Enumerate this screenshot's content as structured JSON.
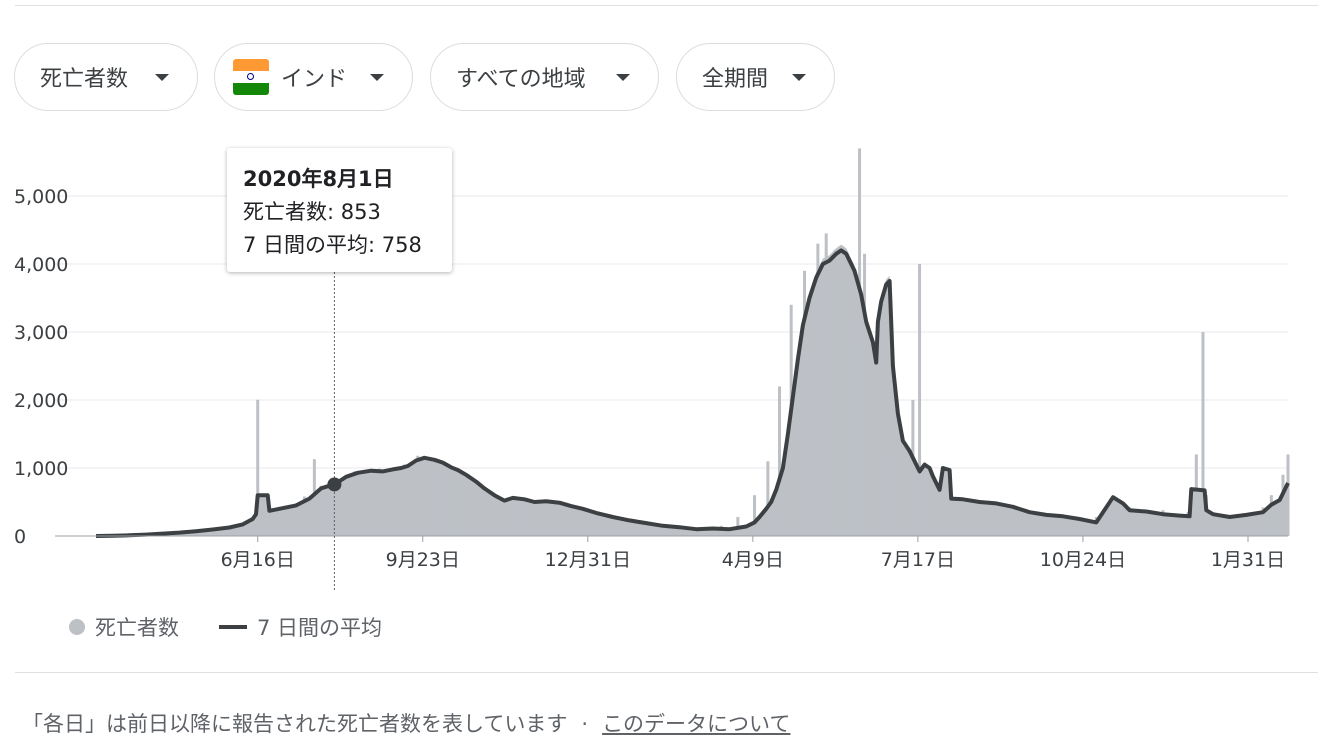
{
  "filters": {
    "metric": "死亡者数",
    "country": "インド",
    "region": "すべての地域",
    "period": "全期間"
  },
  "tooltip": {
    "date": "2020年8月1日",
    "deaths_line": "死亡者数: 853",
    "avg_line": "7 日間の平均: 758"
  },
  "legend": {
    "deaths": "死亡者数",
    "average": "7 日間の平均"
  },
  "footer": {
    "note": "「各日」は前日以降に報告された死亡者数を表しています",
    "separator": "·",
    "link": "このデータについて"
  },
  "colors": {
    "bars": "#bdc1c6",
    "average_line": "#3c4043",
    "grid": "#e8eaed"
  },
  "chart_data": {
    "type": "bar",
    "y_ticks": [
      "5,000",
      "4,000",
      "3,000",
      "2,000",
      "1,000",
      "0"
    ],
    "y_tick_values": [
      5000,
      4000,
      3000,
      2000,
      1000,
      0
    ],
    "ylim": [
      0,
      5700
    ],
    "x_tick_labels": [
      "6月16日",
      "9月23日",
      "12月31日",
      "4月9日",
      "7月17日",
      "10月24日",
      "1月31日"
    ],
    "x_tick_day_index": [
      97,
      196,
      295,
      394,
      493,
      592,
      691
    ],
    "highlight_day_index": 143,
    "series": [
      {
        "name": "死亡者数",
        "kind": "bars",
        "points": [
          [
            0,
            0
          ],
          [
            20,
            8
          ],
          [
            40,
            40
          ],
          [
            55,
            70
          ],
          [
            70,
            110
          ],
          [
            82,
            140
          ],
          [
            92,
            210
          ],
          [
            96,
            300
          ],
          [
            97,
            2003
          ],
          [
            98,
            380
          ],
          [
            110,
            420
          ],
          [
            125,
            580
          ],
          [
            131,
            1130
          ],
          [
            135,
            740
          ],
          [
            143,
            853
          ],
          [
            155,
            950
          ],
          [
            170,
            990
          ],
          [
            185,
            1050
          ],
          [
            193,
            1180
          ],
          [
            205,
            1130
          ],
          [
            215,
            980
          ],
          [
            220,
            820
          ],
          [
            225,
            790
          ],
          [
            235,
            620
          ],
          [
            245,
            500
          ],
          [
            255,
            480
          ],
          [
            265,
            430
          ],
          [
            270,
            410
          ],
          [
            285,
            300
          ],
          [
            295,
            250
          ],
          [
            305,
            180
          ],
          [
            310,
            150
          ],
          [
            325,
            120
          ],
          [
            340,
            110
          ],
          [
            350,
            100
          ],
          [
            365,
            110
          ],
          [
            375,
            150
          ],
          [
            385,
            280
          ],
          [
            395,
            600
          ],
          [
            403,
            1100
          ],
          [
            410,
            2200
          ],
          [
            417,
            3400
          ],
          [
            425,
            3900
          ],
          [
            433,
            4300
          ],
          [
            438,
            4450
          ],
          [
            443,
            4200
          ],
          [
            448,
            3800
          ],
          [
            452,
            3200
          ],
          [
            455,
            2800
          ],
          [
            458,
            5700
          ],
          [
            461,
            4150
          ],
          [
            465,
            2800
          ],
          [
            470,
            1700
          ],
          [
            476,
            1200
          ],
          [
            481,
            900
          ],
          [
            485,
            700
          ],
          [
            490,
            2000
          ],
          [
            493,
            600
          ],
          [
            494,
            4000
          ],
          [
            496,
            550
          ],
          [
            505,
            520
          ],
          [
            520,
            500
          ],
          [
            535,
            520
          ],
          [
            550,
            320
          ],
          [
            570,
            300
          ],
          [
            590,
            250
          ],
          [
            600,
            280
          ],
          [
            610,
            450
          ],
          [
            620,
            420
          ],
          [
            640,
            380
          ],
          [
            655,
            350
          ],
          [
            660,
            1200
          ],
          [
            662,
            350
          ],
          [
            664,
            3000
          ],
          [
            666,
            600
          ],
          [
            670,
            320
          ],
          [
            690,
            330
          ],
          [
            700,
            420
          ],
          [
            705,
            600
          ],
          [
            712,
            900
          ],
          [
            715,
            1200
          ]
        ]
      },
      {
        "name": "7 日間の平均",
        "kind": "line",
        "points": [
          [
            0,
            0
          ],
          [
            10,
            3
          ],
          [
            20,
            10
          ],
          [
            30,
            20
          ],
          [
            40,
            35
          ],
          [
            50,
            50
          ],
          [
            60,
            70
          ],
          [
            70,
            95
          ],
          [
            80,
            125
          ],
          [
            88,
            170
          ],
          [
            94,
            250
          ],
          [
            96,
            320
          ],
          [
            97,
            600
          ],
          [
            103,
            600
          ],
          [
            104,
            370
          ],
          [
            110,
            400
          ],
          [
            120,
            450
          ],
          [
            128,
            550
          ],
          [
            135,
            700
          ],
          [
            140,
            740
          ],
          [
            143,
            758
          ],
          [
            150,
            870
          ],
          [
            157,
            930
          ],
          [
            165,
            960
          ],
          [
            172,
            950
          ],
          [
            178,
            980
          ],
          [
            183,
            1000
          ],
          [
            187,
            1030
          ],
          [
            192,
            1110
          ],
          [
            197,
            1150
          ],
          [
            203,
            1120
          ],
          [
            208,
            1080
          ],
          [
            213,
            1010
          ],
          [
            217,
            970
          ],
          [
            222,
            900
          ],
          [
            228,
            800
          ],
          [
            233,
            700
          ],
          [
            239,
            600
          ],
          [
            245,
            520
          ],
          [
            250,
            560
          ],
          [
            257,
            540
          ],
          [
            263,
            500
          ],
          [
            270,
            510
          ],
          [
            278,
            490
          ],
          [
            285,
            440
          ],
          [
            292,
            400
          ],
          [
            300,
            340
          ],
          [
            310,
            280
          ],
          [
            320,
            230
          ],
          [
            330,
            190
          ],
          [
            340,
            150
          ],
          [
            350,
            130
          ],
          [
            360,
            100
          ],
          [
            370,
            110
          ],
          [
            380,
            100
          ],
          [
            390,
            140
          ],
          [
            395,
            200
          ],
          [
            398,
            280
          ],
          [
            402,
            400
          ],
          [
            405,
            500
          ],
          [
            408,
            680
          ],
          [
            412,
            1000
          ],
          [
            415,
            1500
          ],
          [
            418,
            2050
          ],
          [
            421,
            2600
          ],
          [
            424,
            3100
          ],
          [
            428,
            3500
          ],
          [
            432,
            3800
          ],
          [
            436,
            4000
          ],
          [
            440,
            4050
          ],
          [
            444,
            4150
          ],
          [
            447,
            4200
          ],
          [
            450,
            4150
          ],
          [
            455,
            3900
          ],
          [
            459,
            3550
          ],
          [
            462,
            3150
          ],
          [
            466,
            2850
          ],
          [
            468,
            2550
          ],
          [
            469,
            3150
          ],
          [
            471,
            3450
          ],
          [
            474,
            3700
          ],
          [
            476,
            3750
          ],
          [
            478,
            2500
          ],
          [
            481,
            1800
          ],
          [
            484,
            1400
          ],
          [
            488,
            1250
          ],
          [
            491,
            1100
          ],
          [
            494,
            950
          ],
          [
            497,
            1050
          ],
          [
            500,
            1000
          ],
          [
            502,
            880
          ],
          [
            504,
            780
          ],
          [
            506,
            680
          ],
          [
            508,
            1000
          ],
          [
            512,
            970
          ],
          [
            513,
            550
          ],
          [
            520,
            540
          ],
          [
            530,
            500
          ],
          [
            540,
            480
          ],
          [
            550,
            430
          ],
          [
            560,
            350
          ],
          [
            570,
            310
          ],
          [
            580,
            290
          ],
          [
            590,
            250
          ],
          [
            600,
            200
          ],
          [
            610,
            570
          ],
          [
            616,
            480
          ],
          [
            620,
            380
          ],
          [
            630,
            360
          ],
          [
            640,
            320
          ],
          [
            650,
            300
          ],
          [
            656,
            290
          ],
          [
            657,
            690
          ],
          [
            665,
            670
          ],
          [
            666,
            380
          ],
          [
            670,
            320
          ],
          [
            680,
            280
          ],
          [
            690,
            310
          ],
          [
            700,
            350
          ],
          [
            705,
            460
          ],
          [
            710,
            530
          ],
          [
            715,
            780
          ]
        ]
      }
    ]
  }
}
